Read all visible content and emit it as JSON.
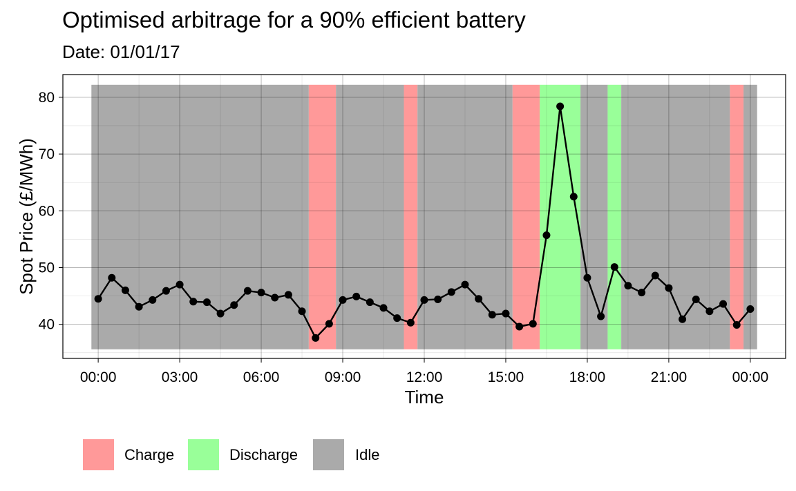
{
  "chart_data": {
    "type": "line",
    "title": "Optimised arbitrage for a 90% efficient battery",
    "subtitle": "Date: 01/01/17",
    "xlabel": "Time",
    "ylabel": "Spot Price (£/MWh)",
    "x_tick_labels": [
      "00:00",
      "03:00",
      "06:00",
      "09:00",
      "12:00",
      "15:00",
      "18:00",
      "21:00",
      "00:00"
    ],
    "y_ticks": [
      40,
      50,
      60,
      70,
      80
    ],
    "ylim": [
      34,
      84
    ],
    "grid": true,
    "legend_position": "bottom",
    "colors": {
      "Charge": "#ff9999",
      "Discharge": "#99ff99",
      "Idle": "#aaaaaa",
      "line": "#000000"
    },
    "legend": [
      "Charge",
      "Discharge",
      "Idle"
    ],
    "series": [
      {
        "x_hours": [
          0,
          0.5,
          1,
          1.5,
          2,
          2.5,
          3,
          3.5,
          4,
          4.5,
          5,
          5.5,
          6,
          6.5,
          7,
          7.5,
          8,
          8.5,
          9,
          9.5,
          10,
          10.5,
          11,
          11.5,
          12,
          12.5,
          13,
          13.5,
          14,
          14.5,
          15,
          15.5,
          16,
          16.5,
          17,
          17.5,
          18,
          18.5,
          19,
          19.5,
          20,
          20.5,
          21,
          21.5,
          22,
          22.5,
          23,
          23.5,
          24
        ],
        "values": [
          44.5,
          48.2,
          46.0,
          43.1,
          44.3,
          45.9,
          47.0,
          44.0,
          43.9,
          41.9,
          43.4,
          45.9,
          45.6,
          44.7,
          45.2,
          42.3,
          37.6,
          40.1,
          44.3,
          44.9,
          43.9,
          42.9,
          41.1,
          40.3,
          44.3,
          44.4,
          45.7,
          47.0,
          44.5,
          41.7,
          41.9,
          39.6,
          40.1,
          55.7,
          78.4,
          62.5,
          48.2,
          41.4,
          50.1,
          46.8,
          45.6,
          48.6,
          46.4,
          40.9,
          44.4,
          42.3,
          43.6,
          39.9,
          42.7
        ]
      }
    ],
    "state_bands": [
      {
        "state": "Idle",
        "from_hour": -0.25,
        "to_hour": 7.75
      },
      {
        "state": "Charge",
        "from_hour": 7.75,
        "to_hour": 8.75
      },
      {
        "state": "Idle",
        "from_hour": 8.75,
        "to_hour": 11.25
      },
      {
        "state": "Charge",
        "from_hour": 11.25,
        "to_hour": 11.75
      },
      {
        "state": "Idle",
        "from_hour": 11.75,
        "to_hour": 15.25
      },
      {
        "state": "Charge",
        "from_hour": 15.25,
        "to_hour": 16.25
      },
      {
        "state": "Discharge",
        "from_hour": 16.25,
        "to_hour": 17.75
      },
      {
        "state": "Idle",
        "from_hour": 17.75,
        "to_hour": 18.75
      },
      {
        "state": "Discharge",
        "from_hour": 18.75,
        "to_hour": 19.25
      },
      {
        "state": "Idle",
        "from_hour": 19.25,
        "to_hour": 23.25
      },
      {
        "state": "Charge",
        "from_hour": 23.25,
        "to_hour": 23.75
      },
      {
        "state": "Idle",
        "from_hour": 23.75,
        "to_hour": 24.25
      }
    ],
    "band_ylim": [
      35.6,
      82.2
    ]
  }
}
